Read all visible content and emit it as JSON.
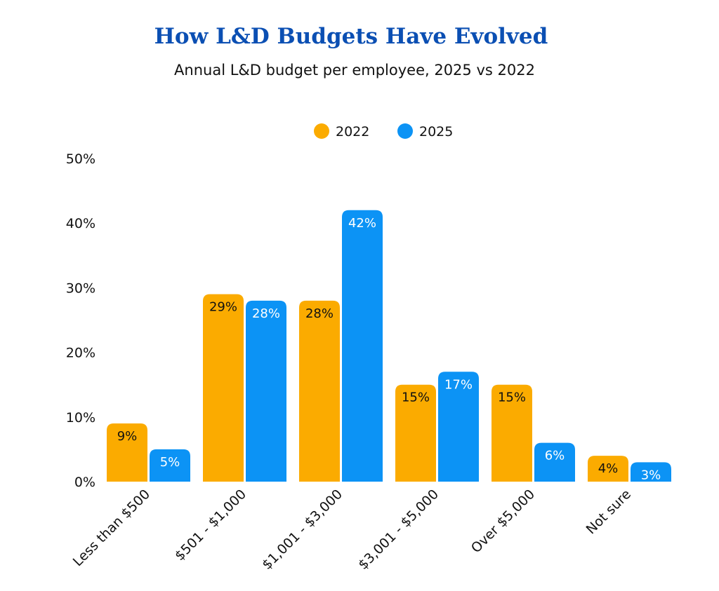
{
  "header": {
    "title": "How L&D Budgets Have Evolved",
    "subtitle": "Annual L&D budget per employee, 2025 vs 2022"
  },
  "colors": {
    "title": "#0b4fb3",
    "series_2022": "#fbab00",
    "series_2025": "#0c93f5",
    "label_on_2022": "#111111",
    "label_on_2025": "#ffffff"
  },
  "chart_data": {
    "type": "bar",
    "title": "How L&D Budgets Have Evolved",
    "subtitle": "Annual L&D budget per employee, 2025 vs 2022",
    "xlabel": "",
    "ylabel": "",
    "categories": [
      "Less than $500",
      "$501 - $1,000",
      "$1,001 - $3,000",
      "$3,001 - $5,000",
      "Over $5,000",
      "Not sure"
    ],
    "series": [
      {
        "name": "2022",
        "values": [
          9,
          29,
          28,
          15,
          15,
          4
        ],
        "labels": [
          "9%",
          "29%",
          "28%",
          "15%",
          "15%",
          "4%"
        ]
      },
      {
        "name": "2025",
        "values": [
          5,
          28,
          42,
          17,
          6,
          3
        ],
        "labels": [
          "5%",
          "28%",
          "42%",
          "17%",
          "6%",
          "3%"
        ]
      }
    ],
    "ylim": [
      0,
      50
    ],
    "yticks": [
      0,
      10,
      20,
      30,
      40,
      50
    ],
    "ytick_labels": [
      "0%",
      "10%",
      "20%",
      "30%",
      "40%",
      "50%"
    ],
    "grid": false,
    "legend": {
      "placement": "top-center",
      "entries": [
        "2022",
        "2025"
      ]
    }
  }
}
